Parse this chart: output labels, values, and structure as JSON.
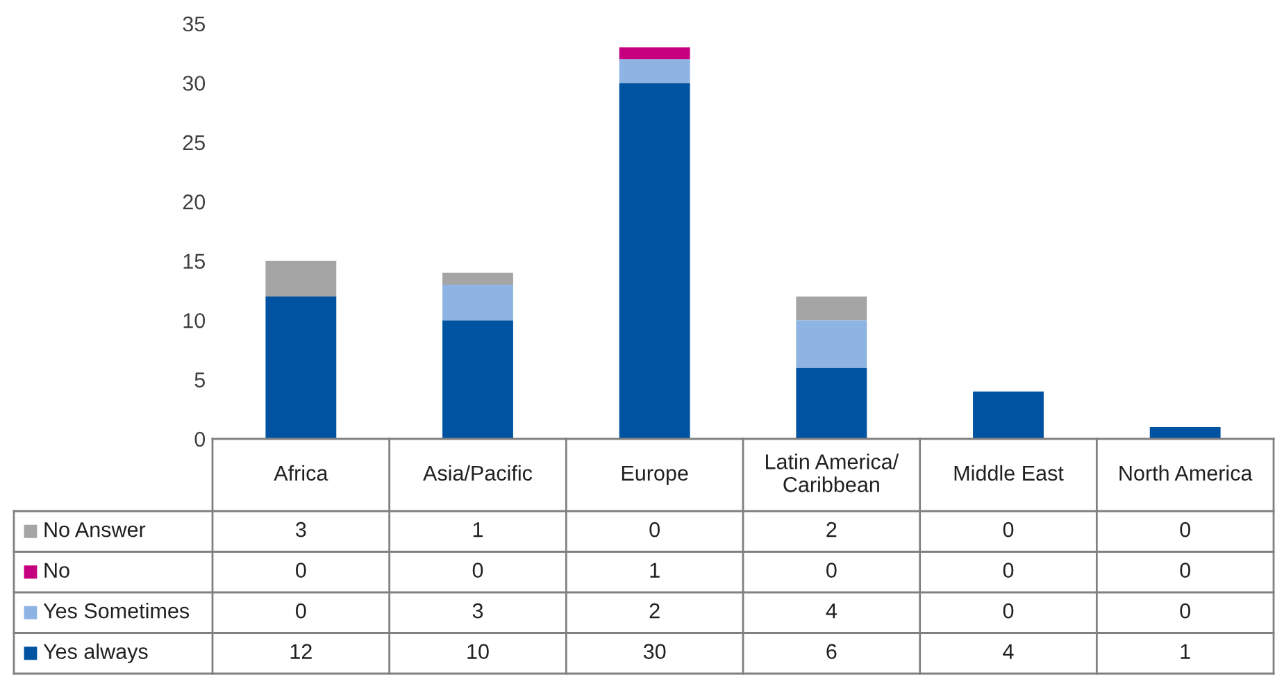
{
  "chart_data": {
    "type": "bar",
    "stacked": true,
    "data_labels": true,
    "legend": "bottom",
    "grid": false,
    "categories": [
      "Africa",
      "Asia/Pacific",
      "Europe",
      "Latin America/Caribbean",
      "Middle East",
      "North America"
    ],
    "ylim": [
      0,
      35
    ],
    "yticks": [
      0,
      5,
      10,
      15,
      20,
      25,
      30,
      35
    ],
    "series": [
      {
        "name": "Yes always",
        "color": "#0053a1",
        "values": [
          12,
          10,
          30,
          6,
          4,
          1
        ]
      },
      {
        "name": "Yes Sometimes",
        "color": "#8db4e2",
        "values": [
          0,
          3,
          2,
          4,
          0,
          0
        ]
      },
      {
        "name": "No",
        "color": "#c6007e",
        "values": [
          0,
          0,
          1,
          0,
          0,
          0
        ]
      },
      {
        "name": "No Answer",
        "color": "#a5a5a5",
        "values": [
          3,
          1,
          0,
          2,
          0,
          0
        ]
      }
    ]
  }
}
